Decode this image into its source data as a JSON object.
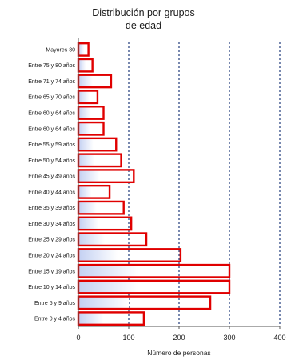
{
  "chart_data": {
    "type": "bar",
    "orientation": "horizontal",
    "title_lines": [
      "Distribución por grupos",
      "de edad"
    ],
    "xlabel": "Número de personas",
    "ylabel": "",
    "xlim": [
      0,
      400
    ],
    "xticks": [
      0,
      100,
      200,
      300,
      400
    ],
    "grid": "vertical dashed at 100, 200, 300, 400",
    "categories": [
      "Mayores 80",
      "Entre 75 y 80 años",
      "Entre 71 y 74 años",
      "Entre 65 y 70 años",
      "Entre 60 y 64 años",
      "Entre 60 y 64 años",
      "Entre 55 y 59 años",
      "Entre 50 y 54 años",
      "Entre 45 y 49 años",
      "Entre 40 y 44 años",
      "Entre 35 y 39 años",
      "Entre 30 y 34 años",
      "Entre 25 y 29 años",
      "Entre 20 y 24 años",
      "Entre 15 y 19 años",
      "Entre 10 y 14 años",
      "Entre 5 y 9 años",
      "Entre 0 y 4 años"
    ],
    "series": [
      {
        "style": "red outline",
        "color": "#e00000",
        "values": [
          20,
          28,
          65,
          38,
          50,
          50,
          75,
          85,
          110,
          62,
          90,
          105,
          135,
          203,
          300,
          300,
          262,
          130
        ]
      },
      {
        "style": "blue gradient fill",
        "color": "#9fb3e6",
        "values": [
          12,
          15,
          28,
          22,
          25,
          24,
          30,
          32,
          42,
          26,
          36,
          40,
          52,
          78,
          118,
          118,
          100,
          50
        ]
      }
    ]
  }
}
